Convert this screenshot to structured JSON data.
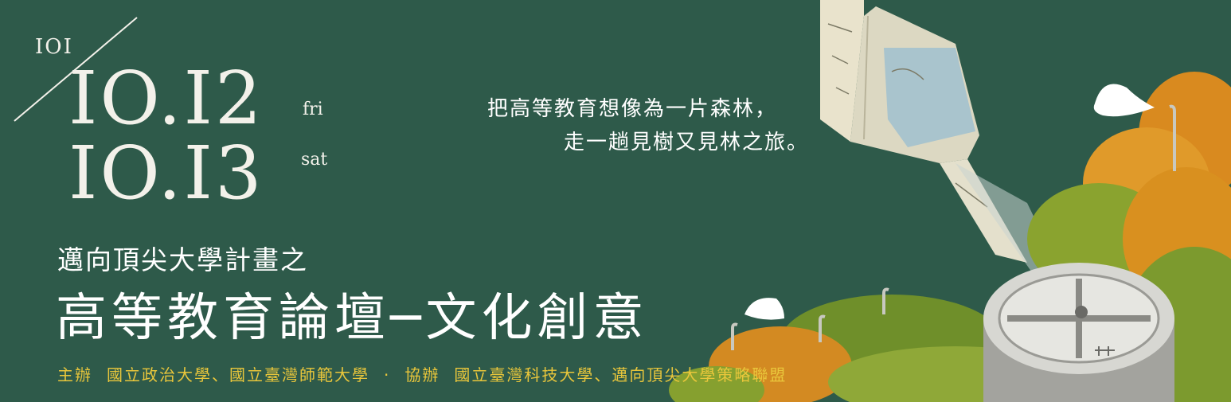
{
  "event": {
    "year": "IOI",
    "date1": "IO.I2",
    "day1": "fri",
    "date2": "IO.I3",
    "day2": "sat"
  },
  "title": {
    "subtitle": "邁向頂尖大學計畫之",
    "main": "高等教育論壇─文化創意"
  },
  "tagline": {
    "line1": "把高等教育想像為一片森林，",
    "line2": "走一趟見樹又見林之旅。"
  },
  "organizers": {
    "host_label": "主辦",
    "hosts": "國立政治大學、國立臺灣師範大學",
    "separator": "·",
    "co_label": "協辦",
    "co_hosts": "國立臺灣科技大學、邁向頂尖大學策略聯盟"
  },
  "colors": {
    "background": "#2e5a4a",
    "chalk_text": "#f3f1ea",
    "organizer_text": "#e9c63b",
    "forest_orange": "#d98a1f",
    "forest_green": "#7c9a2e"
  }
}
